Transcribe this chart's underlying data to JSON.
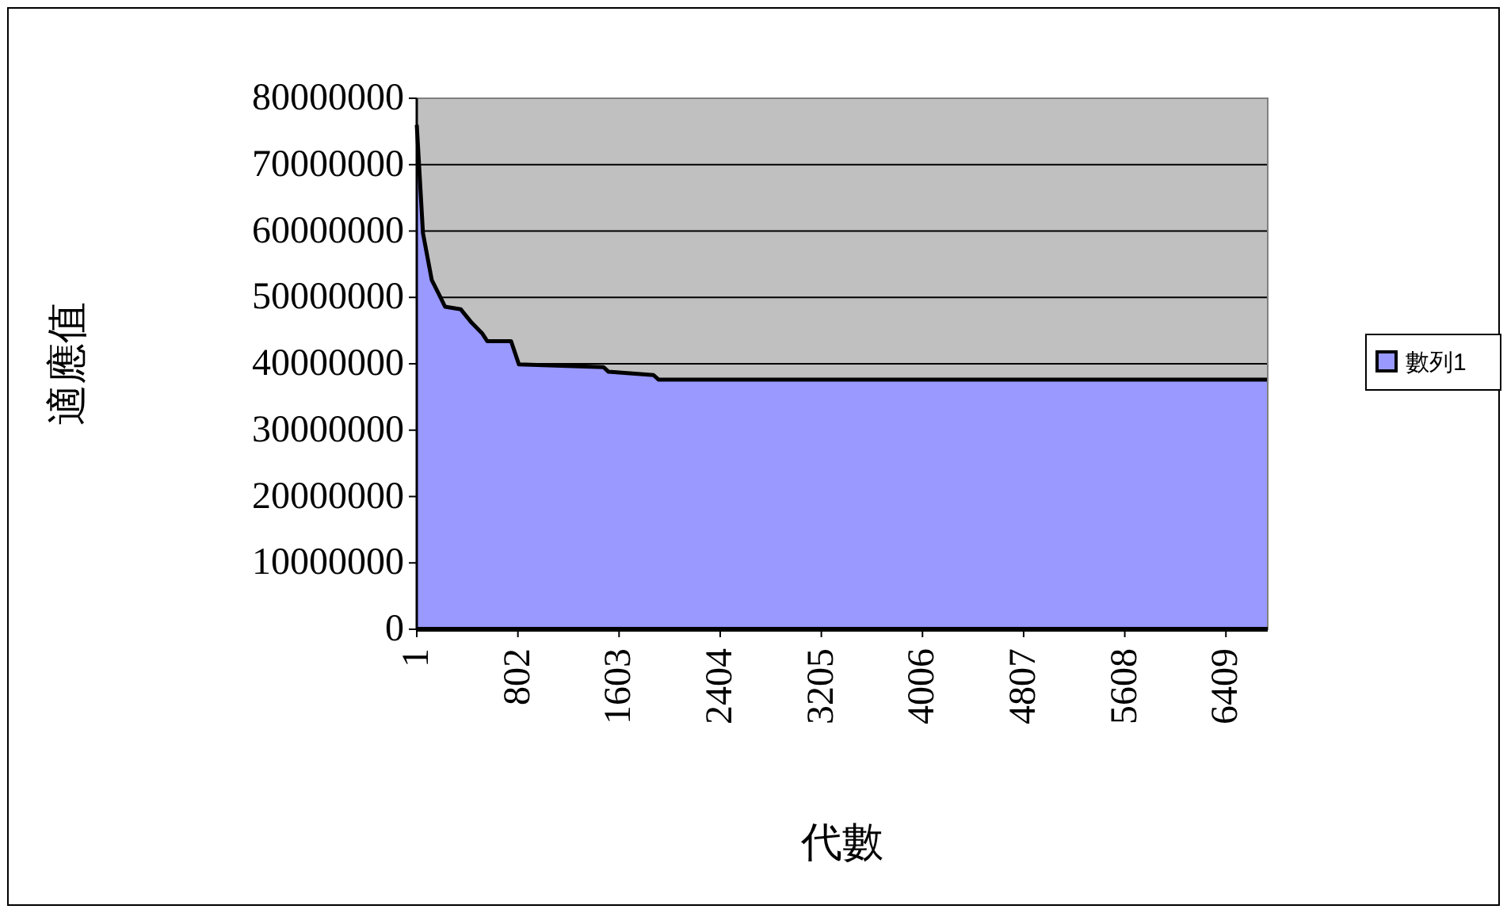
{
  "chart_data": {
    "type": "area",
    "xlabel": "代數",
    "ylabel": "適應值",
    "x": [
      1,
      50,
      120,
      184,
      225,
      350,
      435,
      518,
      560,
      748,
      810,
      1479,
      1520,
      1876,
      1917,
      6740
    ],
    "series": [
      {
        "name": "數列1",
        "color": "#9999ff",
        "values": [
          76000000,
          59700000,
          52600000,
          50200000,
          48600000,
          48200000,
          46200000,
          44600000,
          43400000,
          43400000,
          39900000,
          39500000,
          38800000,
          38300000,
          37600000,
          37600000
        ]
      }
    ],
    "xlim": [
      1,
      6740
    ],
    "xticks": [
      1,
      802,
      1603,
      2404,
      3205,
      4006,
      4807,
      5608,
      6409
    ],
    "ylim": [
      0,
      80000000
    ],
    "yticks": [
      0,
      10000000,
      20000000,
      30000000,
      40000000,
      50000000,
      60000000,
      70000000,
      80000000
    ],
    "grid": "y",
    "legend": "right"
  }
}
